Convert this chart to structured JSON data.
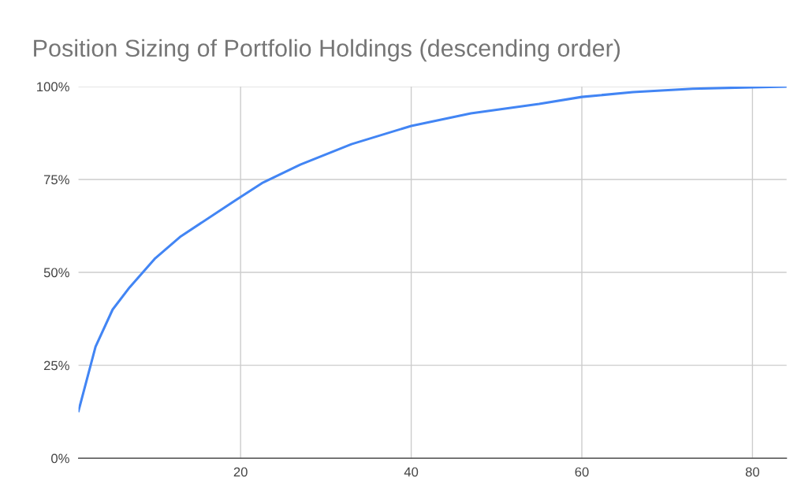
{
  "chart_data": {
    "type": "line",
    "title": "Position Sizing of Portfolio Holdings (descending order)",
    "x": [
      1,
      3,
      5,
      7,
      10,
      13,
      20,
      22.5,
      27,
      33,
      40,
      47,
      55,
      60,
      66,
      73,
      80,
      84
    ],
    "series": [
      {
        "color": "#4285f4",
        "values": [
          12.7,
          30,
          40,
          46,
          53.8,
          59.7,
          70.3,
          74,
          79,
          84.5,
          89.4,
          92.8,
          95.3,
          97.2,
          98.5,
          99.4,
          99.8,
          100
        ]
      }
    ],
    "xlim": [
      1,
      84
    ],
    "xticks": [
      20,
      40,
      60,
      80
    ],
    "ylim": [
      0,
      100
    ],
    "yticks": [
      {
        "value": 0,
        "label": "0%"
      },
      {
        "value": 25,
        "label": "25%"
      },
      {
        "value": 50,
        "label": "50%"
      },
      {
        "value": 75,
        "label": "75%"
      },
      {
        "value": 100,
        "label": "100%"
      }
    ],
    "grid": true,
    "legend": false,
    "marker": "none",
    "line_style": "solid"
  }
}
